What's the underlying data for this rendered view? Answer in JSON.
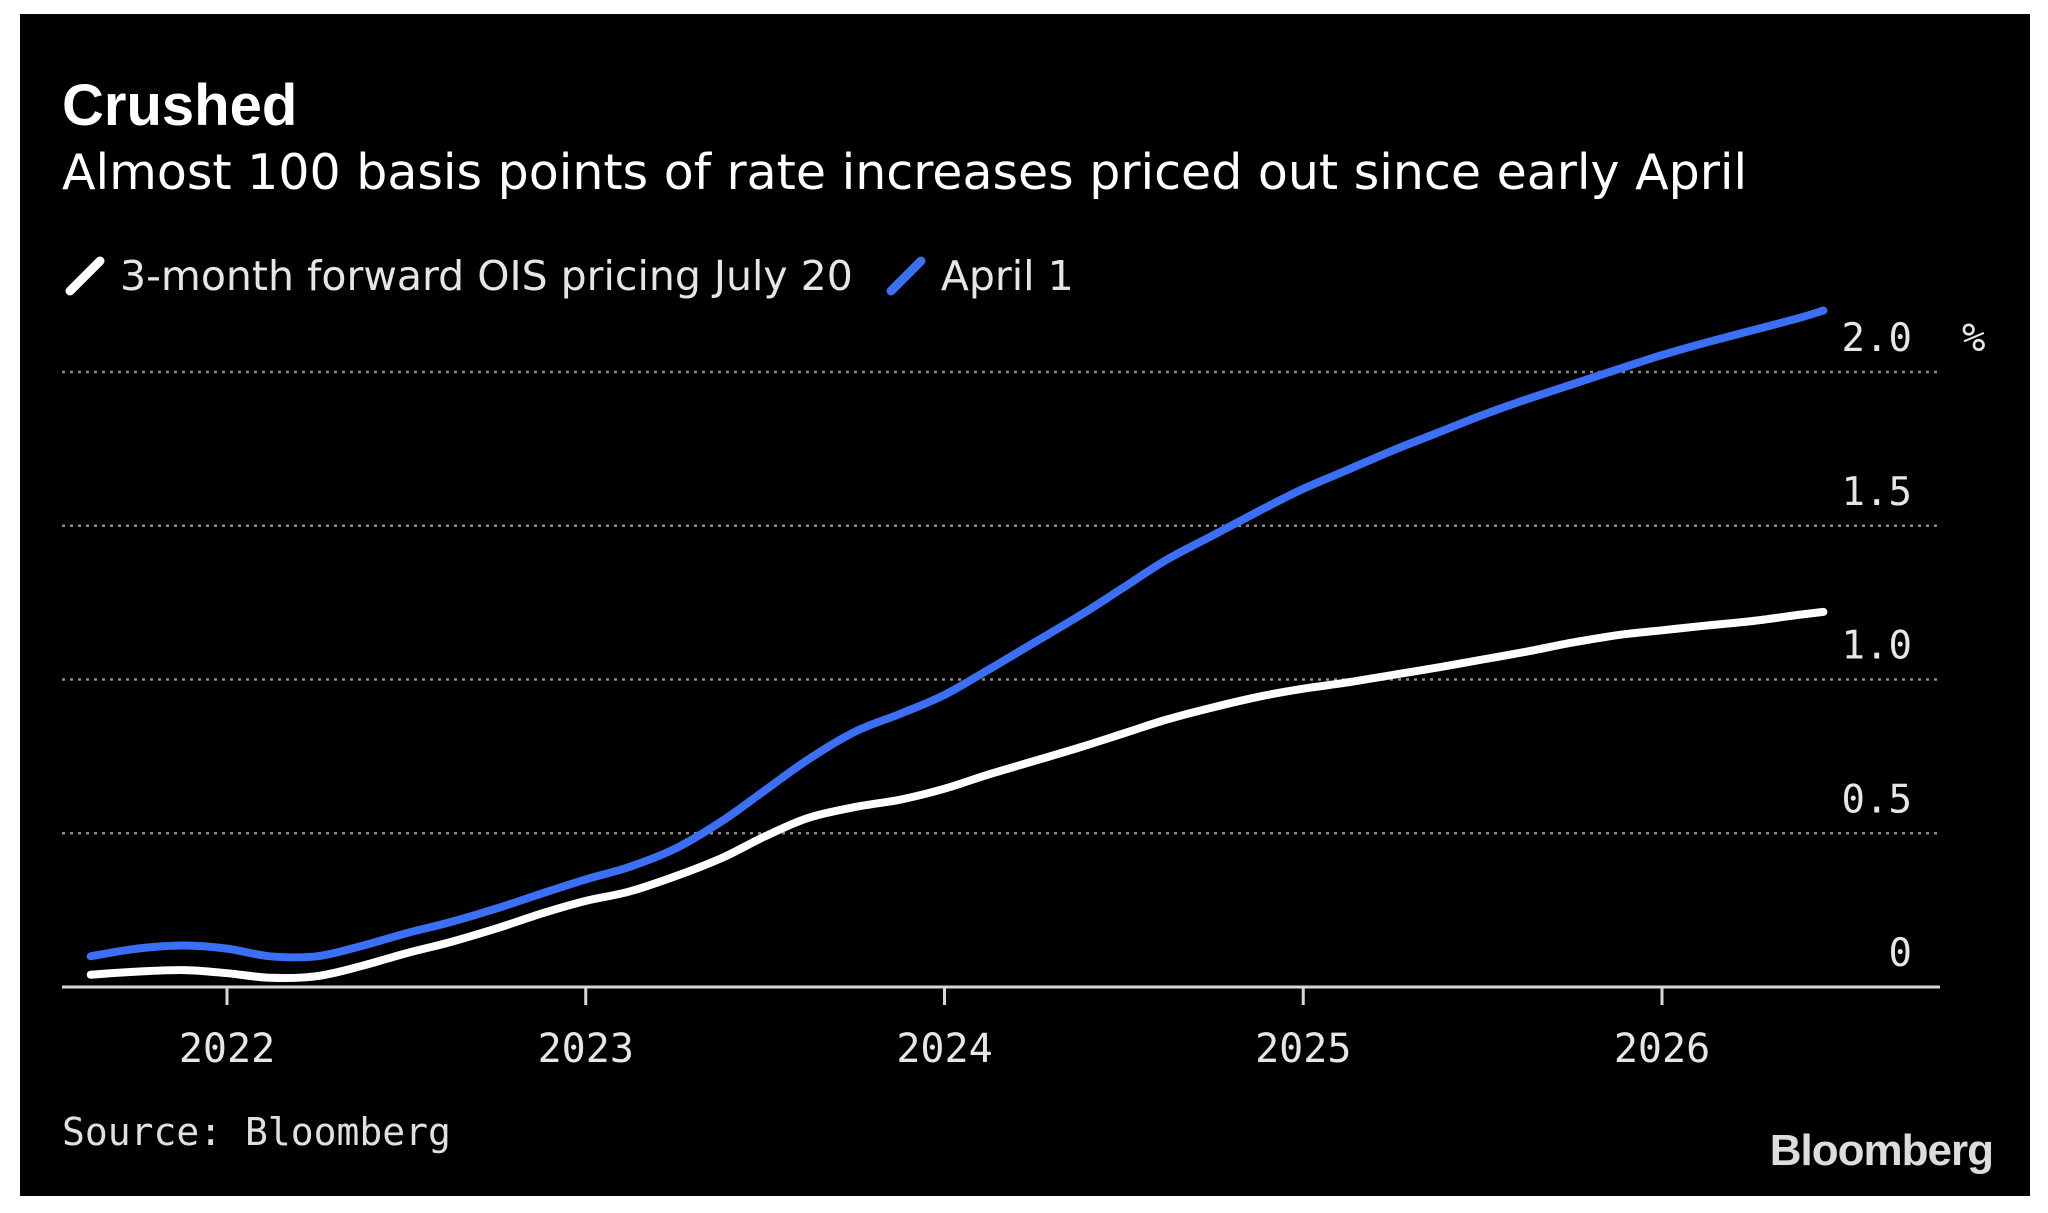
{
  "chart_data": {
    "type": "line",
    "title": "Crushed",
    "subtitle": "Almost 100 basis points of rate increases priced out since early April",
    "unit": "%",
    "ylim": [
      0,
      2.0
    ],
    "yticks": [
      {
        "value": 0,
        "label": "0"
      },
      {
        "value": 0.5,
        "label": "0.5"
      },
      {
        "value": 1.0,
        "label": "1.0"
      },
      {
        "value": 1.5,
        "label": "1.5"
      },
      {
        "value": 2.0,
        "label": "2.0"
      }
    ],
    "xlim": [
      2021.54,
      2026.82
    ],
    "xticks": [
      {
        "value": 2022,
        "label": "2022"
      },
      {
        "value": 2023,
        "label": "2023"
      },
      {
        "value": 2024,
        "label": "2024"
      },
      {
        "value": 2025,
        "label": "2025"
      },
      {
        "value": 2026,
        "label": "2026"
      }
    ],
    "grid": true,
    "legend_position": "top-left",
    "series": [
      {
        "name": "3-month forward OIS pricing July 20",
        "color": "#ffffff",
        "points": [
          [
            2021.62,
            0.04
          ],
          [
            2021.75,
            0.05
          ],
          [
            2021.88,
            0.055
          ],
          [
            2022.0,
            0.045
          ],
          [
            2022.12,
            0.03
          ],
          [
            2022.25,
            0.035
          ],
          [
            2022.38,
            0.07
          ],
          [
            2022.5,
            0.11
          ],
          [
            2022.62,
            0.145
          ],
          [
            2022.75,
            0.19
          ],
          [
            2022.88,
            0.24
          ],
          [
            2023.0,
            0.28
          ],
          [
            2023.12,
            0.31
          ],
          [
            2023.25,
            0.36
          ],
          [
            2023.38,
            0.42
          ],
          [
            2023.5,
            0.49
          ],
          [
            2023.62,
            0.55
          ],
          [
            2023.75,
            0.585
          ],
          [
            2023.88,
            0.61
          ],
          [
            2024.0,
            0.645
          ],
          [
            2024.12,
            0.69
          ],
          [
            2024.25,
            0.735
          ],
          [
            2024.38,
            0.78
          ],
          [
            2024.5,
            0.825
          ],
          [
            2024.62,
            0.87
          ],
          [
            2024.75,
            0.91
          ],
          [
            2024.88,
            0.945
          ],
          [
            2025.0,
            0.97
          ],
          [
            2025.12,
            0.99
          ],
          [
            2025.25,
            1.015
          ],
          [
            2025.38,
            1.04
          ],
          [
            2025.5,
            1.065
          ],
          [
            2025.62,
            1.09
          ],
          [
            2025.75,
            1.12
          ],
          [
            2025.88,
            1.145
          ],
          [
            2026.0,
            1.16
          ],
          [
            2026.12,
            1.175
          ],
          [
            2026.25,
            1.19
          ],
          [
            2026.38,
            1.21
          ],
          [
            2026.45,
            1.22
          ]
        ]
      },
      {
        "name": "April 1",
        "color": "#3b6ff5",
        "points": [
          [
            2021.62,
            0.1
          ],
          [
            2021.75,
            0.125
          ],
          [
            2021.88,
            0.135
          ],
          [
            2022.0,
            0.125
          ],
          [
            2022.12,
            0.1
          ],
          [
            2022.25,
            0.1
          ],
          [
            2022.38,
            0.135
          ],
          [
            2022.5,
            0.175
          ],
          [
            2022.62,
            0.21
          ],
          [
            2022.75,
            0.255
          ],
          [
            2022.88,
            0.305
          ],
          [
            2023.0,
            0.35
          ],
          [
            2023.12,
            0.39
          ],
          [
            2023.25,
            0.45
          ],
          [
            2023.38,
            0.54
          ],
          [
            2023.5,
            0.64
          ],
          [
            2023.62,
            0.74
          ],
          [
            2023.75,
            0.83
          ],
          [
            2023.88,
            0.89
          ],
          [
            2024.0,
            0.95
          ],
          [
            2024.12,
            1.03
          ],
          [
            2024.25,
            1.12
          ],
          [
            2024.38,
            1.21
          ],
          [
            2024.5,
            1.3
          ],
          [
            2024.62,
            1.39
          ],
          [
            2024.75,
            1.47
          ],
          [
            2024.88,
            1.55
          ],
          [
            2025.0,
            1.62
          ],
          [
            2025.12,
            1.68
          ],
          [
            2025.25,
            1.745
          ],
          [
            2025.38,
            1.805
          ],
          [
            2025.5,
            1.86
          ],
          [
            2025.62,
            1.91
          ],
          [
            2025.75,
            1.96
          ],
          [
            2025.88,
            2.01
          ],
          [
            2026.0,
            2.055
          ],
          [
            2026.12,
            2.095
          ],
          [
            2026.25,
            2.135
          ],
          [
            2026.38,
            2.175
          ],
          [
            2026.45,
            2.2
          ]
        ]
      }
    ]
  },
  "source": "Source: Bloomberg",
  "brand": "Bloomberg"
}
